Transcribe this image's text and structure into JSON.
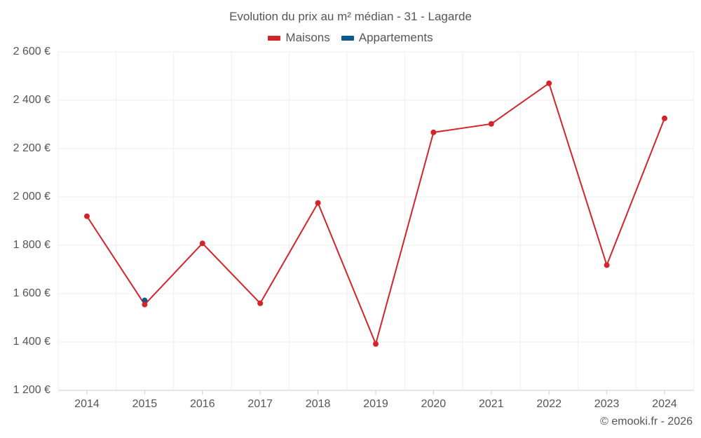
{
  "chart_data": {
    "type": "line",
    "title": "Evolution du prix au m² médian - 31 - Lagarde",
    "categories": [
      "2014",
      "2015",
      "2016",
      "2017",
      "2018",
      "2019",
      "2020",
      "2021",
      "2022",
      "2023",
      "2024"
    ],
    "series": [
      {
        "name": "Maisons",
        "color": "#d3242b",
        "values": [
          1920,
          1555,
          1808,
          1560,
          1975,
          1392,
          2267,
          2302,
          2470,
          1718,
          2325
        ]
      },
      {
        "name": "Appartements",
        "color": "#0a5a8c",
        "values": [
          null,
          1572,
          null,
          null,
          null,
          null,
          null,
          null,
          null,
          null,
          null
        ]
      }
    ],
    "y_ticks": [
      "2 600 €",
      "2 400 €",
      "2 200 €",
      "2 000 €",
      "1 800 €",
      "1 600 €",
      "1 400 €",
      "1 200 €"
    ],
    "y_tick_values": [
      2600,
      2400,
      2200,
      2000,
      1800,
      1600,
      1400,
      1200
    ],
    "ylim": [
      1200,
      2600
    ],
    "xlabel": "",
    "ylabel": "",
    "grid": true,
    "legend_position": "top-center"
  },
  "credit": "© emooki.fr - 2026"
}
